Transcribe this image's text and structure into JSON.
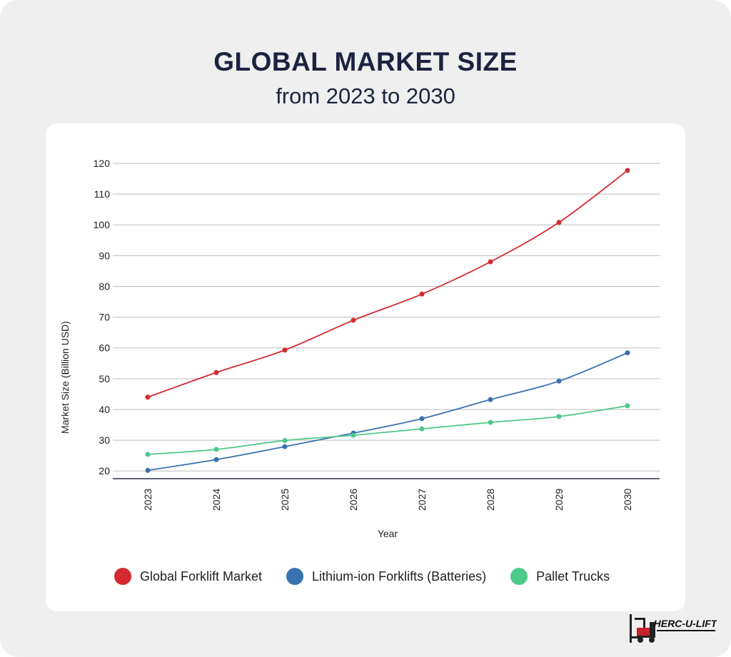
{
  "header": {
    "title": "GLOBAL MARKET SIZE",
    "subtitle": "from 2023 to 2030"
  },
  "chart_data": {
    "type": "line",
    "xlabel": "Year",
    "ylabel": "Market Size (Billion USD)",
    "categories": [
      "2023",
      "2024",
      "2025",
      "2026",
      "2027",
      "2028",
      "2029",
      "2030"
    ],
    "yticks": [
      20,
      30,
      40,
      50,
      60,
      70,
      80,
      90,
      100,
      110,
      120
    ],
    "ylim": [
      17.5,
      120
    ],
    "grid": true,
    "legend_position": "bottom",
    "series": [
      {
        "name": "Global Forklift Market",
        "color": "#d42a2f",
        "values": [
          44.0,
          52.0,
          59.3,
          69.0,
          77.5,
          88.0,
          100.8,
          117.7
        ]
      },
      {
        "name": "Lithium-ion Forklifts (Batteries)",
        "color": "#3a72b0",
        "values": [
          20.2,
          23.7,
          27.9,
          32.3,
          37.0,
          43.2,
          49.2,
          58.4
        ]
      },
      {
        "name": "Pallet Trucks",
        "color": "#4ec98a",
        "values": [
          25.4,
          27.0,
          29.9,
          31.6,
          33.7,
          35.8,
          37.7,
          41.2
        ]
      }
    ]
  },
  "legend": {
    "items": [
      {
        "label": "Global Forklift Market",
        "color": "#d42a2f"
      },
      {
        "label": "Lithium-ion Forklifts (Batteries)",
        "color": "#3a72b0"
      },
      {
        "label": "Pallet Trucks",
        "color": "#4ec98a"
      }
    ]
  },
  "logo": {
    "text": "HERC-U-LIFT",
    "icon": "forklift-icon"
  }
}
